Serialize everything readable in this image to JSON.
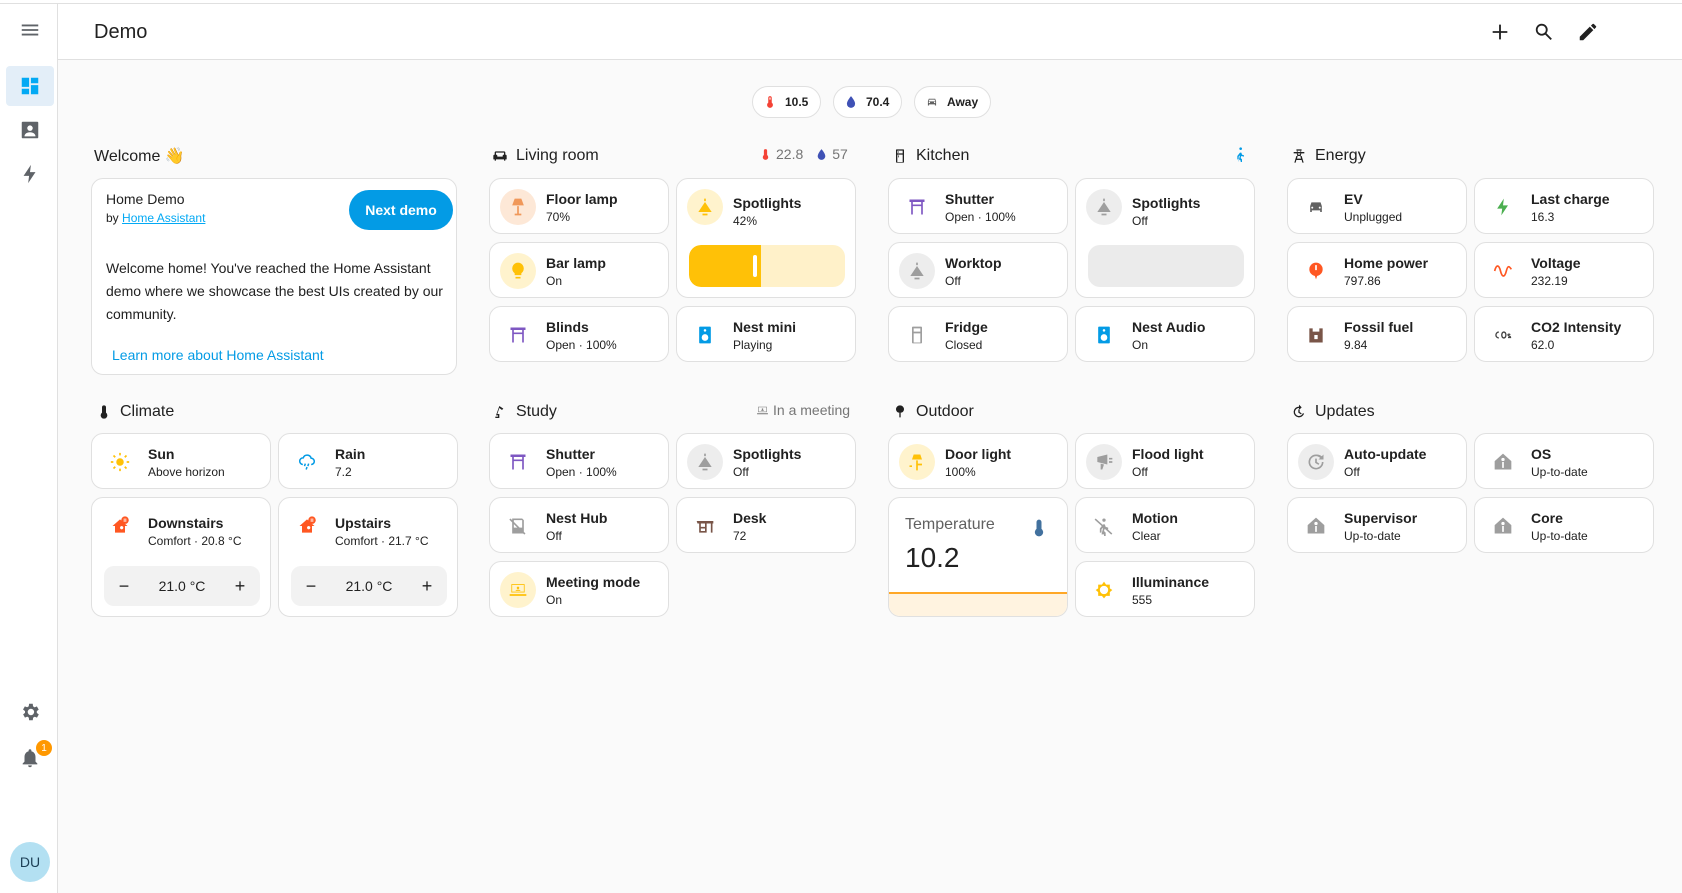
{
  "app": {
    "title": "Demo"
  },
  "sidebar": {
    "notification_count": "1",
    "avatar_initials": "DU"
  },
  "chips": [
    {
      "icon": "thermometer-icon",
      "label": "10.5",
      "color": "#f44336"
    },
    {
      "icon": "water-drop-icon",
      "label": "70.4",
      "color": "#3f51b5"
    },
    {
      "icon": "car-icon",
      "label": "Away",
      "color": "#616161"
    }
  ],
  "welcome": {
    "heading": "Welcome 👋",
    "card_title": "Home Demo",
    "by": "by",
    "by_link": "Home Assistant",
    "next_button": "Next demo",
    "body": "Welcome home! You've reached the Home Assistant demo where we showcase the best UIs created by our community.",
    "learn_more": "Learn more about Home Assistant"
  },
  "living_room": {
    "heading": "Living room",
    "temp": "22.8",
    "humidity": "57",
    "tiles": [
      {
        "name": "Floor lamp",
        "state": "70%",
        "icon": "floor-lamp-icon"
      },
      {
        "name": "Spotlights",
        "state": "42%",
        "icon": "spotlight-icon",
        "level": 0.42
      },
      {
        "name": "Bar lamp",
        "state": "On",
        "icon": "lightbulb-icon"
      },
      {
        "name": "Blinds",
        "state": "Open · 100%",
        "icon": "blinds-icon"
      },
      {
        "name": "Nest mini",
        "state": "Playing",
        "icon": "speaker-icon"
      }
    ]
  },
  "kitchen": {
    "heading": "Kitchen",
    "tiles": [
      {
        "name": "Shutter",
        "state": "Open · 100%",
        "icon": "shutter-icon"
      },
      {
        "name": "Spotlights",
        "state": "Off",
        "icon": "spotlight-icon",
        "level": 0
      },
      {
        "name": "Worktop",
        "state": "Off",
        "icon": "spotlight-icon"
      },
      {
        "name": "Fridge",
        "state": "Closed",
        "icon": "fridge-icon"
      },
      {
        "name": "Nest Audio",
        "state": "On",
        "icon": "speaker-icon"
      }
    ]
  },
  "energy": {
    "heading": "Energy",
    "tiles": [
      {
        "name": "EV",
        "state": "Unplugged",
        "icon": "car-icon"
      },
      {
        "name": "Last charge",
        "state": "16.3",
        "icon": "lightning-icon"
      },
      {
        "name": "Home power",
        "state": "797.86",
        "icon": "power-icon"
      },
      {
        "name": "Voltage",
        "state": "232.19",
        "icon": "sine-wave-icon"
      },
      {
        "name": "Fossil fuel",
        "state": "9.84",
        "icon": "factory-icon"
      },
      {
        "name": "CO2 Intensity",
        "state": "62.0",
        "icon": "co2-icon"
      }
    ]
  },
  "climate": {
    "heading": "Climate",
    "tiles": [
      {
        "name": "Sun",
        "state": "Above horizon",
        "icon": "sun-icon"
      },
      {
        "name": "Rain",
        "state": "7.2",
        "icon": "rain-icon"
      },
      {
        "name": "Downstairs",
        "state": "Comfort · 20.8 °C",
        "icon": "home-heat-icon",
        "target": "21.0 °C"
      },
      {
        "name": "Upstairs",
        "state": "Comfort · 21.7 °C",
        "icon": "home-heat-icon",
        "target": "21.0 °C"
      }
    ],
    "minus": "−",
    "plus": "+"
  },
  "study": {
    "heading": "Study",
    "status": "In a meeting",
    "tiles": [
      {
        "name": "Shutter",
        "state": "Open · 100%",
        "icon": "shutter-icon"
      },
      {
        "name": "Spotlights",
        "state": "Off",
        "icon": "spotlight-icon"
      },
      {
        "name": "Nest Hub",
        "state": "Off",
        "icon": "nest-hub-icon"
      },
      {
        "name": "Desk",
        "state": "72",
        "icon": "desk-icon"
      },
      {
        "name": "Meeting mode",
        "state": "On",
        "icon": "laptop-account-icon"
      }
    ]
  },
  "outdoor": {
    "heading": "Outdoor",
    "tiles": [
      {
        "name": "Door light",
        "state": "100%",
        "icon": "outdoor-lamp-icon"
      },
      {
        "name": "Flood light",
        "state": "Off",
        "icon": "flood-light-icon"
      },
      {
        "name": "Motion",
        "state": "Clear",
        "icon": "motion-icon"
      },
      {
        "name": "Illuminance",
        "state": "555",
        "icon": "brightness-icon"
      }
    ],
    "sensor": {
      "name": "Temperature",
      "value": "10.2"
    }
  },
  "updates": {
    "heading": "Updates",
    "tiles": [
      {
        "name": "Auto-update",
        "state": "Off",
        "icon": "auto-update-icon"
      },
      {
        "name": "OS",
        "state": "Up-to-date",
        "icon": "home-assistant-icon"
      },
      {
        "name": "Supervisor",
        "state": "Up-to-date",
        "icon": "home-assistant-icon"
      },
      {
        "name": "Core",
        "state": "Up-to-date",
        "icon": "home-assistant-icon"
      }
    ]
  },
  "colors": {
    "accent": "#03a9f4",
    "light_on": "#ffc107",
    "energy_green": "#4caf50",
    "energy_orange": "#ff5722",
    "cover_purple": "#7e57c2"
  }
}
